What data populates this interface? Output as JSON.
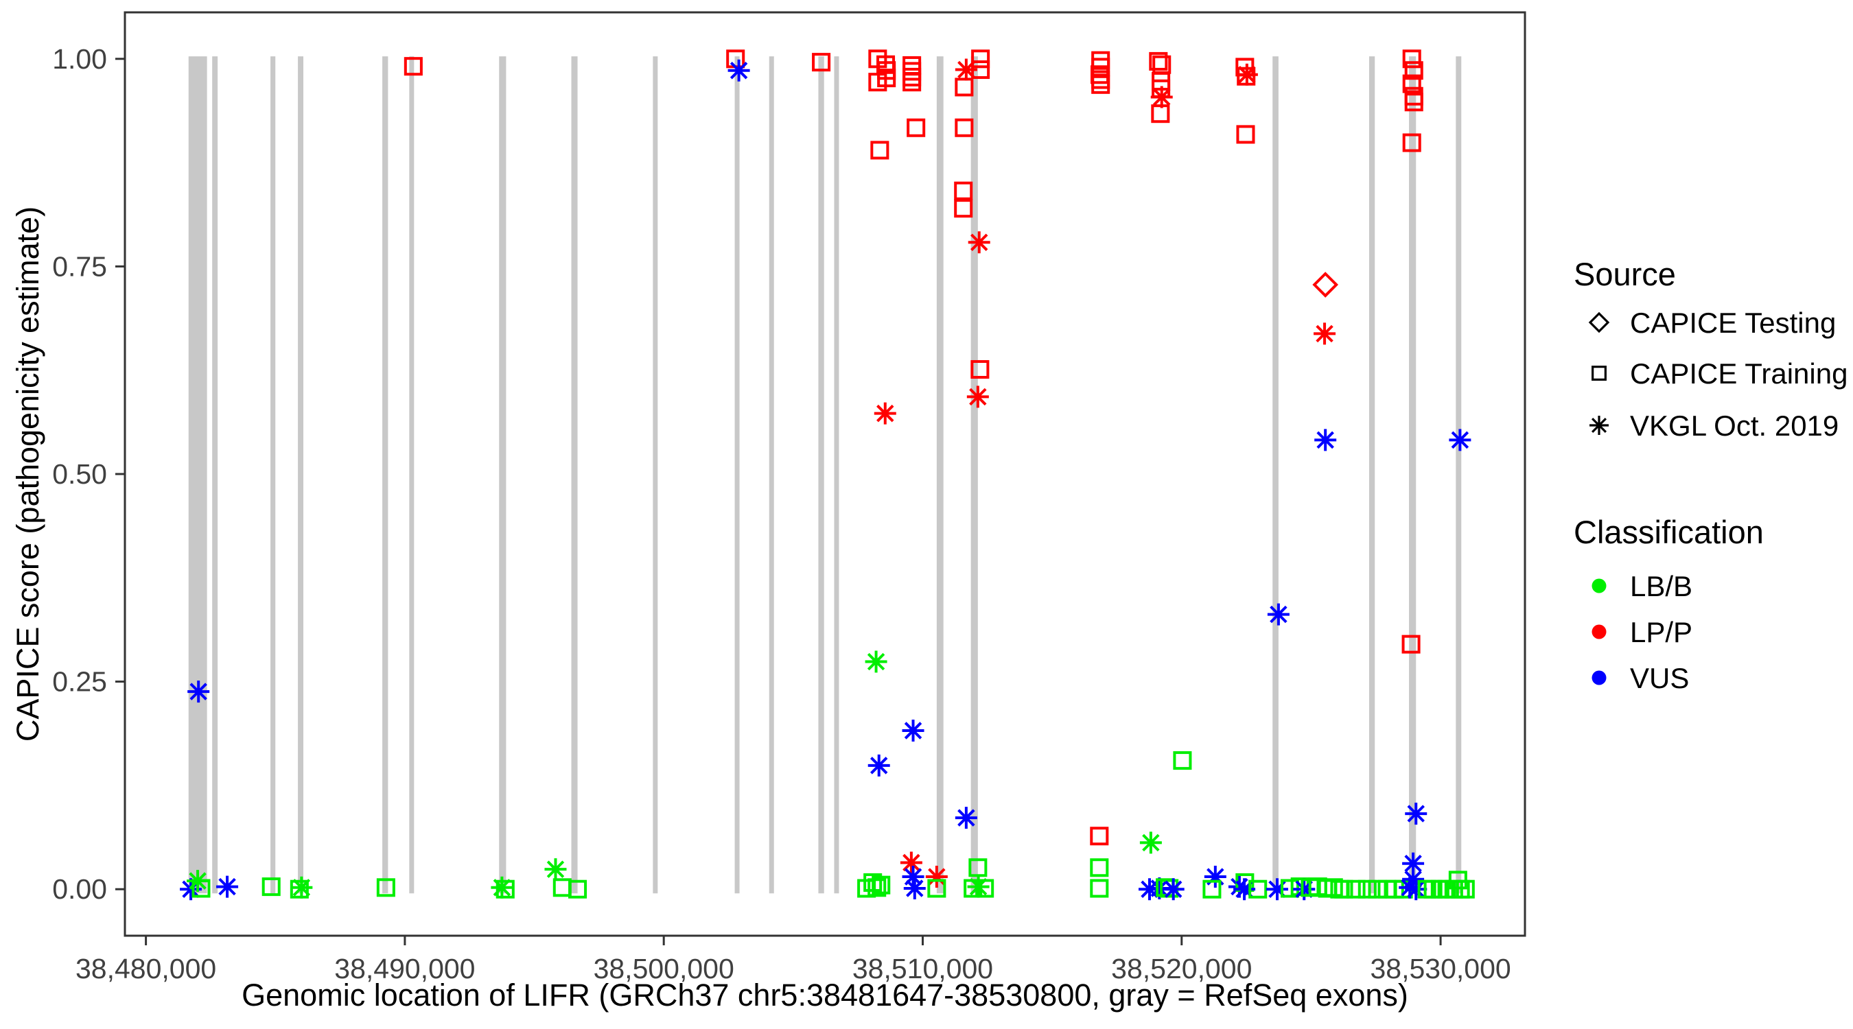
{
  "chart_data": {
    "type": "scatter",
    "title": "",
    "xlabel": "Genomic location of LIFR (GRCh37 chr5:38481647-38530800, gray = RefSeq exons)",
    "ylabel": "CAPICE score (pathogenicity estimate)",
    "x_domain": [
      38479189,
      38533258
    ],
    "y_domain": [
      -0.056,
      1.056
    ],
    "grid": false,
    "x_ticks": [
      {
        "value": 38480000,
        "label": "38,480,000"
      },
      {
        "value": 38490000,
        "label": "38,490,000"
      },
      {
        "value": 38500000,
        "label": "38,500,000"
      },
      {
        "value": 38510000,
        "label": "38,510,000"
      },
      {
        "value": 38520000,
        "label": "38,520,000"
      },
      {
        "value": 38530000,
        "label": "38,530,000"
      }
    ],
    "y_ticks": [
      {
        "value": 0.0,
        "label": "0.00"
      },
      {
        "value": 0.25,
        "label": "0.25"
      },
      {
        "value": 0.5,
        "label": "0.50"
      },
      {
        "value": 0.75,
        "label": "0.75"
      },
      {
        "value": 1.0,
        "label": "1.00"
      }
    ],
    "colors": {
      "LB/B": "#00EE00",
      "LP/P": "#FF0000",
      "VUS": "#0000FF",
      "exon": "#C8C8C8",
      "axis": "#333333",
      "legend_glyph": "#000000"
    },
    "exons_note": "gray vertical bars = RefSeq exons, genomic start/end (GRCh37 chr5)",
    "exons": [
      [
        38481647,
        38482360
      ],
      [
        38482560,
        38482770
      ],
      [
        38484810,
        38485000
      ],
      [
        38485870,
        38486080
      ],
      [
        38489130,
        38489350
      ],
      [
        38490170,
        38490350
      ],
      [
        38493640,
        38493910
      ],
      [
        38496430,
        38496670
      ],
      [
        38499580,
        38499740
      ],
      [
        38502740,
        38502900
      ],
      [
        38504070,
        38504220
      ],
      [
        38505970,
        38506190
      ],
      [
        38506580,
        38506740
      ],
      [
        38510540,
        38510800
      ],
      [
        38511860,
        38512130
      ],
      [
        38523510,
        38523740
      ],
      [
        38527240,
        38527460
      ],
      [
        38528780,
        38529050
      ],
      [
        38530590,
        38530800
      ]
    ],
    "points_format": [
      "genomic_position",
      "capice_score",
      "source",
      "classification"
    ],
    "points": [
      [
        38481735,
        0.0,
        "VKGL",
        "VUS"
      ],
      [
        38482000,
        0.01,
        "VKGL",
        "LB/B"
      ],
      [
        38482130,
        0.001,
        "Training",
        "LB/B"
      ],
      [
        38482030,
        0.238,
        "VKGL",
        "VUS"
      ],
      [
        38483140,
        0.003,
        "VKGL",
        "VUS"
      ],
      [
        38484840,
        0.003,
        "Training",
        "LB/B"
      ],
      [
        38485930,
        0.0,
        "Training",
        "LB/B"
      ],
      [
        38486010,
        0.002,
        "VKGL",
        "LB/B"
      ],
      [
        38489270,
        0.002,
        "Training",
        "LB/B"
      ],
      [
        38490330,
        0.991,
        "Training",
        "LP/P"
      ],
      [
        38493750,
        0.002,
        "VKGL",
        "LB/B"
      ],
      [
        38493880,
        0.0,
        "Training",
        "LB/B"
      ],
      [
        38495820,
        0.024,
        "VKGL",
        "LB/B"
      ],
      [
        38496080,
        0.002,
        "Training",
        "LB/B"
      ],
      [
        38496670,
        0.0,
        "Training",
        "LB/B"
      ],
      [
        38502770,
        1.0,
        "Training",
        "LP/P"
      ],
      [
        38502900,
        0.986,
        "VKGL",
        "VUS"
      ],
      [
        38506080,
        0.996,
        "Training",
        "LP/P"
      ],
      [
        38508260,
        1.0,
        "Training",
        "LP/P"
      ],
      [
        38508570,
        0.993,
        "Training",
        "LP/P"
      ],
      [
        38508600,
        0.986,
        "Training",
        "LP/P"
      ],
      [
        38508600,
        0.977,
        "Training",
        "LP/P"
      ],
      [
        38508260,
        0.972,
        "Training",
        "LP/P"
      ],
      [
        38508340,
        0.89,
        "Training",
        "LP/P"
      ],
      [
        38508550,
        0.573,
        "VKGL",
        "LP/P"
      ],
      [
        38508200,
        0.274,
        "VKGL",
        "LB/B"
      ],
      [
        38508310,
        0.149,
        "VKGL",
        "VUS"
      ],
      [
        38507830,
        0.001,
        "Training",
        "LB/B"
      ],
      [
        38508070,
        0.008,
        "Training",
        "LB/B"
      ],
      [
        38508230,
        0.002,
        "Training",
        "LB/B"
      ],
      [
        38508390,
        0.005,
        "Training",
        "LB/B"
      ],
      [
        38509580,
        0.992,
        "Training",
        "LP/P"
      ],
      [
        38509580,
        0.985,
        "Training",
        "LP/P"
      ],
      [
        38509580,
        0.978,
        "Training",
        "LP/P"
      ],
      [
        38509580,
        0.972,
        "Training",
        "LP/P"
      ],
      [
        38509740,
        0.917,
        "Training",
        "LP/P"
      ],
      [
        38509630,
        0.191,
        "VKGL",
        "VUS"
      ],
      [
        38509560,
        0.032,
        "VKGL",
        "LP/P"
      ],
      [
        38509630,
        0.015,
        "VKGL",
        "VUS"
      ],
      [
        38509690,
        0.001,
        "VKGL",
        "VUS"
      ],
      [
        38510540,
        0.015,
        "VKGL",
        "LP/P"
      ],
      [
        38510540,
        0.001,
        "Training",
        "LB/B"
      ],
      [
        38511680,
        0.987,
        "VKGL",
        "LP/P"
      ],
      [
        38512230,
        1.0,
        "Training",
        "LP/P"
      ],
      [
        38512230,
        0.987,
        "Training",
        "LP/P"
      ],
      [
        38511600,
        0.966,
        "Training",
        "LP/P"
      ],
      [
        38511600,
        0.917,
        "Training",
        "LP/P"
      ],
      [
        38511570,
        0.841,
        "Training",
        "LP/P"
      ],
      [
        38511570,
        0.82,
        "Training",
        "LP/P"
      ],
      [
        38512180,
        0.779,
        "VKGL",
        "LP/P"
      ],
      [
        38512210,
        0.626,
        "Training",
        "LP/P"
      ],
      [
        38512130,
        0.593,
        "VKGL",
        "LP/P"
      ],
      [
        38511680,
        0.086,
        "VKGL",
        "VUS"
      ],
      [
        38512130,
        0.026,
        "Training",
        "LB/B"
      ],
      [
        38511940,
        0.001,
        "Training",
        "LB/B"
      ],
      [
        38512150,
        0.003,
        "VKGL",
        "LB/B"
      ],
      [
        38512390,
        0.001,
        "Training",
        "LB/B"
      ],
      [
        38516870,
        0.998,
        "Training",
        "LP/P"
      ],
      [
        38516870,
        0.99,
        "Training",
        "LP/P"
      ],
      [
        38516840,
        0.981,
        "Training",
        "LP/P"
      ],
      [
        38516870,
        0.975,
        "Training",
        "LP/P"
      ],
      [
        38516870,
        0.969,
        "Training",
        "LP/P"
      ],
      [
        38516820,
        0.064,
        "Training",
        "LP/P"
      ],
      [
        38516820,
        0.026,
        "Training",
        "LB/B"
      ],
      [
        38516820,
        0.001,
        "Training",
        "LB/B"
      ],
      [
        38518810,
        0.056,
        "VKGL",
        "LB/B"
      ],
      [
        38518760,
        0.0,
        "VKGL",
        "VUS"
      ],
      [
        38519140,
        0.001,
        "VKGL",
        "VUS"
      ],
      [
        38519360,
        0.002,
        "Training",
        "LB/B"
      ],
      [
        38519520,
        0.001,
        "Training",
        "LB/B"
      ],
      [
        38519680,
        0.0,
        "VKGL",
        "VUS"
      ],
      [
        38519100,
        0.997,
        "Training",
        "LP/P"
      ],
      [
        38519230,
        0.993,
        "Training",
        "LP/P"
      ],
      [
        38519200,
        0.973,
        "Training",
        "LP/P"
      ],
      [
        38519200,
        0.964,
        "Training",
        "LP/P"
      ],
      [
        38519230,
        0.954,
        "VKGL",
        "LP/P"
      ],
      [
        38519180,
        0.934,
        "Training",
        "LP/P"
      ],
      [
        38520030,
        0.155,
        "Training",
        "LB/B"
      ],
      [
        38521300,
        0.015,
        "VKGL",
        "VUS"
      ],
      [
        38521170,
        0.0,
        "Training",
        "LB/B"
      ],
      [
        38522230,
        0.003,
        "VKGL",
        "VUS"
      ],
      [
        38522440,
        0.008,
        "Training",
        "LB/B"
      ],
      [
        38522420,
        0.0,
        "VKGL",
        "VUS"
      ],
      [
        38522940,
        0.0,
        "Training",
        "LB/B"
      ],
      [
        38522440,
        0.99,
        "Training",
        "LP/P"
      ],
      [
        38522490,
        0.979,
        "Training",
        "LP/P"
      ],
      [
        38522520,
        0.981,
        "VKGL",
        "LP/P"
      ],
      [
        38522470,
        0.909,
        "Training",
        "LP/P"
      ],
      [
        38523740,
        0.331,
        "VKGL",
        "VUS"
      ],
      [
        38523690,
        0.0,
        "VKGL",
        "VUS"
      ],
      [
        38524180,
        0.001,
        "Training",
        "LB/B"
      ],
      [
        38524570,
        0.003,
        "Training",
        "LB/B"
      ],
      [
        38524730,
        0.0,
        "VKGL",
        "VUS"
      ],
      [
        38524960,
        0.002,
        "Training",
        "LB/B"
      ],
      [
        38525260,
        0.003,
        "Training",
        "LB/B"
      ],
      [
        38525550,
        0.728,
        "Testing",
        "LP/P"
      ],
      [
        38525520,
        0.669,
        "VKGL",
        "LP/P"
      ],
      [
        38525550,
        0.541,
        "VKGL",
        "VUS"
      ],
      [
        38525630,
        0.001,
        "Training",
        "LB/B"
      ],
      [
        38525870,
        0.002,
        "Training",
        "LB/B"
      ],
      [
        38526100,
        0.0,
        "Training",
        "LB/B"
      ],
      [
        38526260,
        0.0,
        "Training",
        "LB/B"
      ],
      [
        38526740,
        0.0,
        "Training",
        "LB/B"
      ],
      [
        38527170,
        0.0,
        "Training",
        "LB/B"
      ],
      [
        38527560,
        0.0,
        "Training",
        "LB/B"
      ],
      [
        38527930,
        0.0,
        "Training",
        "LB/B"
      ],
      [
        38528230,
        0.0,
        "Training",
        "LB/B"
      ],
      [
        38528570,
        0.0,
        "Training",
        "LB/B"
      ],
      [
        38528890,
        1.0,
        "Training",
        "LP/P"
      ],
      [
        38528970,
        0.986,
        "Training",
        "LP/P"
      ],
      [
        38528890,
        0.97,
        "Training",
        "LP/P"
      ],
      [
        38528970,
        0.955,
        "Training",
        "LP/P"
      ],
      [
        38528970,
        0.948,
        "Training",
        "LP/P"
      ],
      [
        38528890,
        0.899,
        "Training",
        "LP/P"
      ],
      [
        38528860,
        0.295,
        "Training",
        "LP/P"
      ],
      [
        38529050,
        0.091,
        "VKGL",
        "VUS"
      ],
      [
        38528940,
        0.031,
        "VKGL",
        "VUS"
      ],
      [
        38528940,
        0.012,
        "VKGL",
        "VUS"
      ],
      [
        38528810,
        0.002,
        "VKGL",
        "VUS"
      ],
      [
        38529050,
        0.0,
        "VKGL",
        "VUS"
      ],
      [
        38529470,
        0.0,
        "Training",
        "LB/B"
      ],
      [
        38529710,
        0.0,
        "Training",
        "LB/B"
      ],
      [
        38529980,
        0.0,
        "Training",
        "LB/B"
      ],
      [
        38530240,
        0.0,
        "Training",
        "LB/B"
      ],
      [
        38530510,
        0.0,
        "Training",
        "LB/B"
      ],
      [
        38530670,
        0.011,
        "Training",
        "LB/B"
      ],
      [
        38530770,
        0.0,
        "Training",
        "LB/B"
      ],
      [
        38530960,
        0.0,
        "Training",
        "LB/B"
      ],
      [
        38530750,
        0.541,
        "VKGL",
        "VUS"
      ]
    ],
    "legend": {
      "source": {
        "title": "Source",
        "items": [
          {
            "label": "CAPICE Testing",
            "marker": "diamond",
            "code": "Testing"
          },
          {
            "label": "CAPICE Training",
            "marker": "square",
            "code": "Training"
          },
          {
            "label": "VKGL Oct. 2019",
            "marker": "asterisk",
            "code": "VKGL"
          }
        ]
      },
      "classification": {
        "title": "Classification",
        "items": [
          {
            "label": "LB/B",
            "color_key": "LB/B"
          },
          {
            "label": "LP/P",
            "color_key": "LP/P"
          },
          {
            "label": "VUS",
            "color_key": "VUS"
          }
        ]
      },
      "position": "right"
    }
  }
}
